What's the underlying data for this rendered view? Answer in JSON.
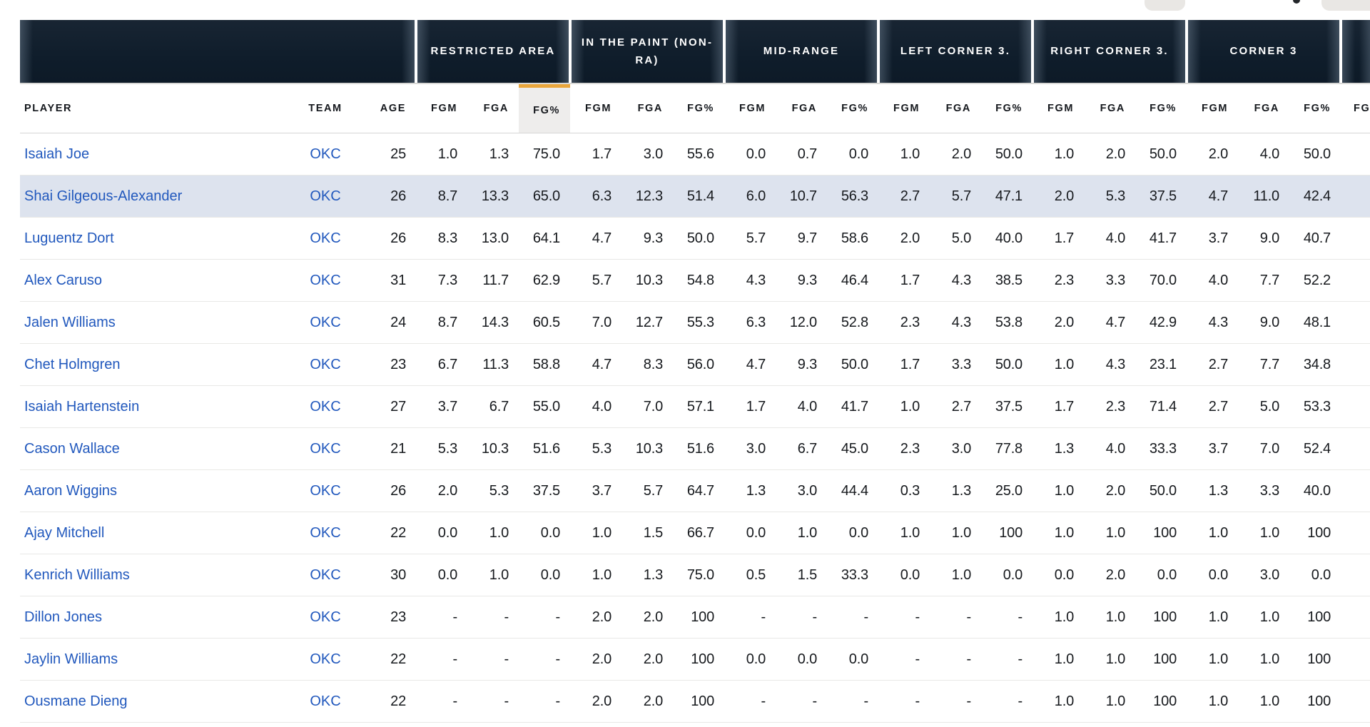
{
  "colors": {
    "header_bar_bg": "#0f1d2b",
    "sort_accent": "#eaa63b",
    "sorted_header_bg": "#eeedec",
    "link_blue": "#2158bd",
    "row_highlight": "#dde3ee",
    "row_divider": "#e8e8e6"
  },
  "table": {
    "left_headers": [
      {
        "key": "player",
        "label": "PLAYER"
      },
      {
        "key": "team",
        "label": "TEAM"
      },
      {
        "key": "age",
        "label": "AGE"
      }
    ],
    "stat_headers": [
      "FGM",
      "FGA",
      "FG%"
    ],
    "groups": [
      {
        "key": "restricted-area",
        "label": "RESTRICTED AREA"
      },
      {
        "key": "in-the-paint-non-ra",
        "label": "IN THE PAINT (NON-RA)"
      },
      {
        "key": "mid-range",
        "label": "MID-RANGE"
      },
      {
        "key": "left-corner-3",
        "label": "LEFT CORNER 3."
      },
      {
        "key": "right-corner-3",
        "label": "RIGHT CORNER 3."
      },
      {
        "key": "corner-3",
        "label": "CORNER 3"
      }
    ],
    "sorted": {
      "group": "restricted-area",
      "stat": "FG%"
    },
    "partial_next_group_header": "FGM",
    "rows": [
      {
        "player": "Isaiah Joe",
        "team": "OKC",
        "age": "25",
        "highlighted": false,
        "stats": [
          "1.0",
          "1.3",
          "75.0",
          "1.7",
          "3.0",
          "55.6",
          "0.0",
          "0.7",
          "0.0",
          "1.0",
          "2.0",
          "50.0",
          "1.0",
          "2.0",
          "50.0",
          "2.0",
          "4.0",
          "50.0"
        ]
      },
      {
        "player": "Shai Gilgeous-Alexander",
        "team": "OKC",
        "age": "26",
        "highlighted": true,
        "stats": [
          "8.7",
          "13.3",
          "65.0",
          "6.3",
          "12.3",
          "51.4",
          "6.0",
          "10.7",
          "56.3",
          "2.7",
          "5.7",
          "47.1",
          "2.0",
          "5.3",
          "37.5",
          "4.7",
          "11.0",
          "42.4"
        ]
      },
      {
        "player": "Luguentz Dort",
        "team": "OKC",
        "age": "26",
        "highlighted": false,
        "stats": [
          "8.3",
          "13.0",
          "64.1",
          "4.7",
          "9.3",
          "50.0",
          "5.7",
          "9.7",
          "58.6",
          "2.0",
          "5.0",
          "40.0",
          "1.7",
          "4.0",
          "41.7",
          "3.7",
          "9.0",
          "40.7"
        ]
      },
      {
        "player": "Alex Caruso",
        "team": "OKC",
        "age": "31",
        "highlighted": false,
        "stats": [
          "7.3",
          "11.7",
          "62.9",
          "5.7",
          "10.3",
          "54.8",
          "4.3",
          "9.3",
          "46.4",
          "1.7",
          "4.3",
          "38.5",
          "2.3",
          "3.3",
          "70.0",
          "4.0",
          "7.7",
          "52.2"
        ]
      },
      {
        "player": "Jalen Williams",
        "team": "OKC",
        "age": "24",
        "highlighted": false,
        "stats": [
          "8.7",
          "14.3",
          "60.5",
          "7.0",
          "12.7",
          "55.3",
          "6.3",
          "12.0",
          "52.8",
          "2.3",
          "4.3",
          "53.8",
          "2.0",
          "4.7",
          "42.9",
          "4.3",
          "9.0",
          "48.1"
        ]
      },
      {
        "player": "Chet Holmgren",
        "team": "OKC",
        "age": "23",
        "highlighted": false,
        "stats": [
          "6.7",
          "11.3",
          "58.8",
          "4.7",
          "8.3",
          "56.0",
          "4.7",
          "9.3",
          "50.0",
          "1.7",
          "3.3",
          "50.0",
          "1.0",
          "4.3",
          "23.1",
          "2.7",
          "7.7",
          "34.8"
        ]
      },
      {
        "player": "Isaiah Hartenstein",
        "team": "OKC",
        "age": "27",
        "highlighted": false,
        "stats": [
          "3.7",
          "6.7",
          "55.0",
          "4.0",
          "7.0",
          "57.1",
          "1.7",
          "4.0",
          "41.7",
          "1.0",
          "2.7",
          "37.5",
          "1.7",
          "2.3",
          "71.4",
          "2.7",
          "5.0",
          "53.3"
        ]
      },
      {
        "player": "Cason Wallace",
        "team": "OKC",
        "age": "21",
        "highlighted": false,
        "stats": [
          "5.3",
          "10.3",
          "51.6",
          "5.3",
          "10.3",
          "51.6",
          "3.0",
          "6.7",
          "45.0",
          "2.3",
          "3.0",
          "77.8",
          "1.3",
          "4.0",
          "33.3",
          "3.7",
          "7.0",
          "52.4"
        ]
      },
      {
        "player": "Aaron Wiggins",
        "team": "OKC",
        "age": "26",
        "highlighted": false,
        "stats": [
          "2.0",
          "5.3",
          "37.5",
          "3.7",
          "5.7",
          "64.7",
          "1.3",
          "3.0",
          "44.4",
          "0.3",
          "1.3",
          "25.0",
          "1.0",
          "2.0",
          "50.0",
          "1.3",
          "3.3",
          "40.0"
        ]
      },
      {
        "player": "Ajay Mitchell",
        "team": "OKC",
        "age": "22",
        "highlighted": false,
        "stats": [
          "0.0",
          "1.0",
          "0.0",
          "1.0",
          "1.5",
          "66.7",
          "0.0",
          "1.0",
          "0.0",
          "1.0",
          "1.0",
          "100",
          "1.0",
          "1.0",
          "100",
          "1.0",
          "1.0",
          "100"
        ]
      },
      {
        "player": "Kenrich Williams",
        "team": "OKC",
        "age": "30",
        "highlighted": false,
        "stats": [
          "0.0",
          "1.0",
          "0.0",
          "1.0",
          "1.3",
          "75.0",
          "0.5",
          "1.5",
          "33.3",
          "0.0",
          "1.0",
          "0.0",
          "0.0",
          "2.0",
          "0.0",
          "0.0",
          "3.0",
          "0.0"
        ]
      },
      {
        "player": "Dillon Jones",
        "team": "OKC",
        "age": "23",
        "highlighted": false,
        "stats": [
          "-",
          "-",
          "-",
          "2.0",
          "2.0",
          "100",
          "-",
          "-",
          "-",
          "-",
          "-",
          "-",
          "1.0",
          "1.0",
          "100",
          "1.0",
          "1.0",
          "100"
        ]
      },
      {
        "player": "Jaylin Williams",
        "team": "OKC",
        "age": "22",
        "highlighted": false,
        "stats": [
          "-",
          "-",
          "-",
          "2.0",
          "2.0",
          "100",
          "0.0",
          "0.0",
          "0.0",
          "-",
          "-",
          "-",
          "1.0",
          "1.0",
          "100",
          "1.0",
          "1.0",
          "100"
        ]
      },
      {
        "player": "Ousmane Dieng",
        "team": "OKC",
        "age": "22",
        "highlighted": false,
        "stats": [
          "-",
          "-",
          "-",
          "2.0",
          "2.0",
          "100",
          "-",
          "-",
          "-",
          "-",
          "-",
          "-",
          "1.0",
          "1.0",
          "100",
          "1.0",
          "1.0",
          "100"
        ]
      }
    ]
  }
}
